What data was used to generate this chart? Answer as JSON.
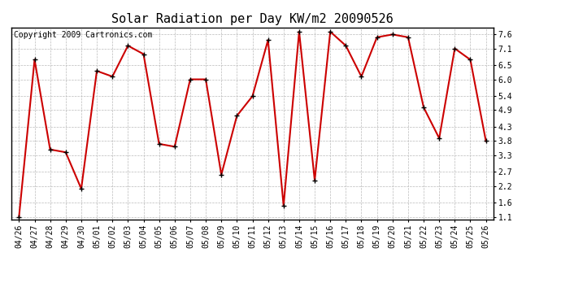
{
  "title": "Solar Radiation per Day KW/m2 20090526",
  "copyright_text": "Copyright 2009 Cartronics.com",
  "x_labels": [
    "04/26",
    "04/27",
    "04/28",
    "04/29",
    "04/30",
    "05/01",
    "05/02",
    "05/03",
    "05/04",
    "05/05",
    "05/06",
    "05/07",
    "05/08",
    "05/09",
    "05/10",
    "05/11",
    "05/12",
    "05/13",
    "05/14",
    "05/15",
    "05/16",
    "05/17",
    "05/18",
    "05/19",
    "05/20",
    "05/21",
    "05/22",
    "05/23",
    "05/24",
    "05/25",
    "05/26"
  ],
  "y_values": [
    1.1,
    6.7,
    3.5,
    3.4,
    2.1,
    6.3,
    6.1,
    7.2,
    6.9,
    3.7,
    3.6,
    6.0,
    6.0,
    2.6,
    4.7,
    5.4,
    7.4,
    1.5,
    7.7,
    2.4,
    7.7,
    7.2,
    6.1,
    7.5,
    7.6,
    7.5,
    5.0,
    3.9,
    7.1,
    6.7,
    3.8
  ],
  "line_color": "#cc0000",
  "marker_color": "#000000",
  "background_color": "#ffffff",
  "plot_bg_color": "#ffffff",
  "grid_color": "#bbbbbb",
  "y_ticks": [
    1.1,
    1.6,
    2.2,
    2.7,
    3.3,
    3.8,
    4.3,
    4.9,
    5.4,
    6.0,
    6.5,
    7.1,
    7.6
  ],
  "ylim": [
    1.0,
    7.85
  ],
  "title_fontsize": 11,
  "tick_fontsize": 7,
  "copyright_fontsize": 7
}
